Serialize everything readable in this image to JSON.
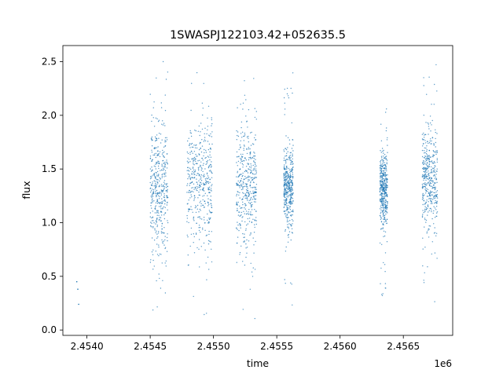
{
  "chart_data": {
    "type": "scatter",
    "title": "1SWASPJ122103.42+052635.5",
    "xlabel": "time",
    "ylabel": "flux",
    "x_offset_label": "1e6",
    "xlim": [
      2453810,
      2456890
    ],
    "ylim": [
      -0.05,
      2.65
    ],
    "x_ticks": [
      2454000,
      2454500,
      2455000,
      2455500,
      2456000,
      2456500
    ],
    "x_tick_labels": [
      "2.4540",
      "2.4545",
      "2.4550",
      "2.4555",
      "2.4560",
      "2.4565"
    ],
    "y_ticks": [
      0.0,
      0.5,
      1.0,
      1.5,
      2.0,
      2.5
    ],
    "y_tick_labels": [
      "0.0",
      "0.5",
      "1.0",
      "1.5",
      "2.0",
      "2.5"
    ],
    "grid": false,
    "legend": "none",
    "marker_color": "#1f77b4",
    "series": [
      {
        "x": [
          2453920,
          2453928,
          2453935,
          2454510,
          2454525,
          2454540,
          2454555,
          2454570,
          2454585,
          2454600,
          2454615,
          2454630,
          2454810,
          2454830,
          2454850,
          2454870,
          2454890,
          2454910,
          2454930,
          2454950,
          2454970,
          2455190,
          2455210,
          2455230,
          2455250,
          2455270,
          2455290,
          2455310,
          2455330,
          2455560,
          2455575,
          2455590,
          2455605,
          2455620,
          2456320,
          2456330,
          2456340,
          2456350,
          2456360,
          2456370,
          2456660,
          2456680,
          2456700,
          2456720,
          2456740,
          2456760
        ],
        "y": [
          0.45,
          0.38,
          0.24,
          1.35,
          1.28,
          1.42,
          1.2,
          1.55,
          1.1,
          1.3,
          1.45,
          1.25,
          1.3,
          1.42,
          1.25,
          1.55,
          1.35,
          1.6,
          1.2,
          1.38,
          1.28,
          1.35,
          1.5,
          1.22,
          1.6,
          1.3,
          1.18,
          1.4,
          1.28,
          1.35,
          1.28,
          1.42,
          1.2,
          1.32,
          1.35,
          1.25,
          1.45,
          1.3,
          1.15,
          1.38,
          1.5,
          1.3,
          1.6,
          1.2,
          1.35,
          1.25
        ]
      }
    ],
    "observing_seasons": [
      {
        "x_range": [
          2454500,
          2454640
        ],
        "y_center": 1.3,
        "y_spread": 0.32,
        "y_range": [
          0.1,
          2.5
        ]
      },
      {
        "x_range": [
          2454790,
          2454990
        ],
        "y_center": 1.35,
        "y_spread": 0.3,
        "y_range": [
          0.1,
          2.5
        ]
      },
      {
        "x_range": [
          2455180,
          2455340
        ],
        "y_center": 1.32,
        "y_spread": 0.3,
        "y_range": [
          0.1,
          2.4
        ]
      },
      {
        "x_range": [
          2455555,
          2455630
        ],
        "y_center": 1.32,
        "y_spread": 0.18,
        "y_range": [
          0.2,
          2.4
        ]
      },
      {
        "x_range": [
          2456315,
          2456375
        ],
        "y_center": 1.3,
        "y_spread": 0.18,
        "y_range": [
          0.3,
          2.1
        ]
      },
      {
        "x_range": [
          2456650,
          2456770
        ],
        "y_center": 1.4,
        "y_spread": 0.25,
        "y_range": [
          0.2,
          2.5
        ]
      }
    ]
  }
}
